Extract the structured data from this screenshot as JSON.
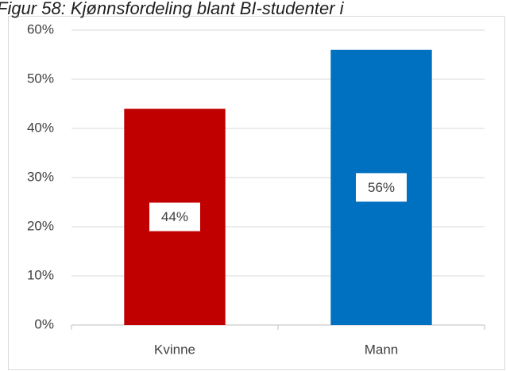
{
  "chart_data": {
    "type": "bar",
    "title": "Figur 58: Kjønnsfordeling blant BI-studenter i",
    "categories": [
      "Kvinne",
      "Mann"
    ],
    "values": [
      44,
      56
    ],
    "value_labels": [
      "44%",
      "56%"
    ],
    "colors": [
      "#c00000",
      "#0070c0"
    ],
    "ylim": [
      0,
      60
    ],
    "yticks": [
      {
        "value": 0,
        "label": "0%"
      },
      {
        "value": 10,
        "label": "10%"
      },
      {
        "value": 20,
        "label": "20%"
      },
      {
        "value": 30,
        "label": "30%"
      },
      {
        "value": 40,
        "label": "40%"
      },
      {
        "value": 50,
        "label": "50%"
      },
      {
        "value": 60,
        "label": "60%"
      }
    ],
    "grid": true
  }
}
